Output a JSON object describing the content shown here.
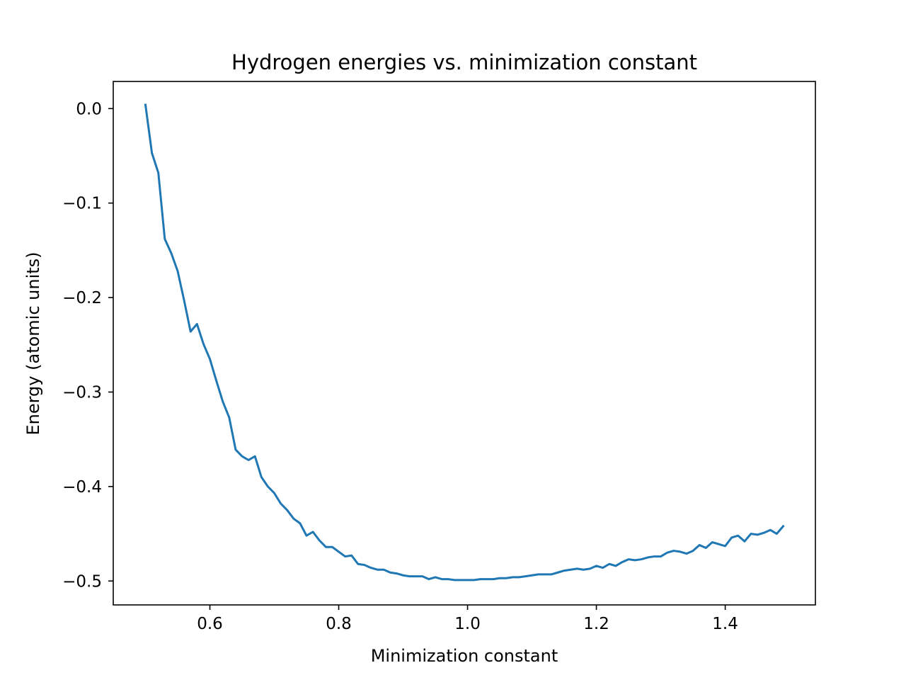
{
  "chart_data": {
    "type": "line",
    "title": "Hydrogen energies vs. minimization constant",
    "xlabel": "Minimization constant",
    "ylabel": "Energy (atomic units)",
    "xlim": [
      0.45,
      1.54
    ],
    "ylim": [
      -0.5253,
      0.0287
    ],
    "xticks": [
      0.6,
      0.8,
      1.0,
      1.2,
      1.4
    ],
    "xtick_labels": [
      "0.6",
      "0.8",
      "1.0",
      "1.2",
      "1.4"
    ],
    "yticks": [
      0.0,
      -0.1,
      -0.2,
      -0.3,
      -0.4,
      -0.5
    ],
    "ytick_labels": [
      "0.0",
      "−0.1",
      "−0.2",
      "−0.3",
      "−0.4",
      "−0.5"
    ],
    "grid": false,
    "series": [
      {
        "color": "#1f77b4",
        "x": [
          0.5,
          0.51,
          0.52,
          0.53,
          0.54,
          0.55,
          0.56,
          0.57,
          0.58,
          0.59,
          0.6,
          0.61,
          0.62,
          0.63,
          0.64,
          0.65,
          0.66,
          0.67,
          0.68,
          0.69,
          0.7,
          0.71,
          0.72,
          0.73,
          0.74,
          0.75,
          0.76,
          0.77,
          0.78,
          0.79,
          0.8,
          0.81,
          0.82,
          0.83,
          0.84,
          0.85,
          0.86,
          0.87,
          0.88,
          0.89,
          0.9,
          0.91,
          0.92,
          0.93,
          0.94,
          0.95,
          0.96,
          0.97,
          0.98,
          0.99,
          1.0,
          1.01,
          1.02,
          1.03,
          1.04,
          1.05,
          1.06,
          1.07,
          1.08,
          1.09,
          1.1,
          1.11,
          1.12,
          1.13,
          1.14,
          1.15,
          1.16,
          1.17,
          1.18,
          1.19,
          1.2,
          1.21,
          1.22,
          1.23,
          1.24,
          1.25,
          1.26,
          1.27,
          1.28,
          1.29,
          1.3,
          1.31,
          1.32,
          1.33,
          1.34,
          1.35,
          1.36,
          1.37,
          1.38,
          1.39,
          1.4,
          1.41,
          1.42,
          1.43,
          1.44,
          1.45,
          1.46,
          1.47,
          1.48,
          1.49
        ],
        "y": [
          0.004,
          -0.047,
          -0.068,
          -0.138,
          -0.153,
          -0.172,
          -0.203,
          -0.236,
          -0.228,
          -0.249,
          -0.265,
          -0.288,
          -0.31,
          -0.327,
          -0.361,
          -0.368,
          -0.372,
          -0.368,
          -0.39,
          -0.4,
          -0.407,
          -0.418,
          -0.425,
          -0.434,
          -0.439,
          -0.452,
          -0.448,
          -0.457,
          -0.464,
          -0.464,
          -0.469,
          -0.474,
          -0.473,
          -0.482,
          -0.483,
          -0.486,
          -0.488,
          -0.488,
          -0.491,
          -0.492,
          -0.494,
          -0.495,
          -0.495,
          -0.495,
          -0.498,
          -0.496,
          -0.498,
          -0.498,
          -0.499,
          -0.499,
          -0.499,
          -0.499,
          -0.498,
          -0.498,
          -0.498,
          -0.497,
          -0.497,
          -0.496,
          -0.496,
          -0.495,
          -0.494,
          -0.493,
          -0.493,
          -0.493,
          -0.491,
          -0.489,
          -0.488,
          -0.487,
          -0.488,
          -0.487,
          -0.484,
          -0.486,
          -0.482,
          -0.484,
          -0.48,
          -0.477,
          -0.478,
          -0.477,
          -0.475,
          -0.474,
          -0.474,
          -0.47,
          -0.468,
          -0.469,
          -0.471,
          -0.468,
          -0.462,
          -0.465,
          -0.459,
          -0.461,
          -0.463,
          -0.454,
          -0.452,
          -0.458,
          -0.45,
          -0.451,
          -0.449,
          -0.446,
          -0.45,
          -0.442
        ]
      }
    ]
  }
}
